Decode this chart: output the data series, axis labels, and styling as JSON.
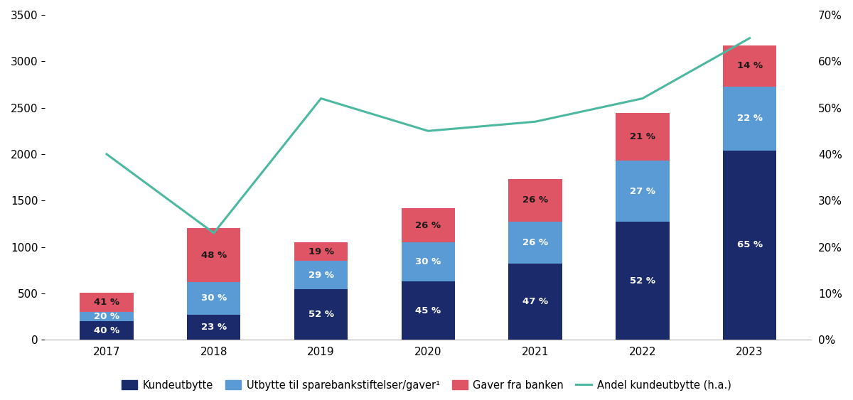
{
  "years": [
    2017,
    2018,
    2019,
    2020,
    2021,
    2022,
    2023
  ],
  "kundeutbytte": [
    200,
    270,
    545,
    630,
    820,
    1270,
    2040
  ],
  "utbytte": [
    100,
    355,
    305,
    420,
    455,
    660,
    690
  ],
  "gaver": [
    205,
    575,
    200,
    365,
    455,
    515,
    440
  ],
  "line_pct": [
    0.4,
    0.23,
    0.52,
    0.45,
    0.47,
    0.52,
    0.65
  ],
  "pct_kundeutbytte": [
    "40 %",
    "23 %",
    "52 %",
    "45 %",
    "47 %",
    "52 %",
    "65 %"
  ],
  "pct_utbytte": [
    "20 %",
    "30 %",
    "29 %",
    "30 %",
    "26 %",
    "27 %",
    "22 %"
  ],
  "pct_gaver": [
    "41 %",
    "48 %",
    "19 %",
    "26 %",
    "26 %",
    "21 %",
    "14 %"
  ],
  "color_kundeutbytte": "#1b2a6b",
  "color_utbytte": "#5b9bd5",
  "color_gaver": "#e05565",
  "color_line": "#4cb8a0",
  "ylim_left": [
    0,
    3500
  ],
  "ylim_right": [
    0.0,
    0.7
  ],
  "yticks_left": [
    0,
    500,
    1000,
    1500,
    2000,
    2500,
    3000,
    3500
  ],
  "ytick_labels_left": [
    "0",
    "500",
    "1000",
    "1500",
    "2000",
    "2500",
    "3000",
    "3500"
  ],
  "yticks_right": [
    0.0,
    0.1,
    0.2,
    0.3,
    0.4,
    0.5,
    0.6,
    0.7
  ],
  "ytick_labels_right": [
    "0%",
    "10%",
    "20%",
    "30%",
    "40%",
    "50%",
    "60%",
    "70%"
  ],
  "legend_kundeutbytte": "Kundeutbytte",
  "legend_utbytte": "Utbytte til sparebankstiftelser/gaver¹",
  "legend_gaver": "Gaver fra banken",
  "legend_line": "Andel kundeutbytte (h.a.)",
  "bar_width": 0.5
}
